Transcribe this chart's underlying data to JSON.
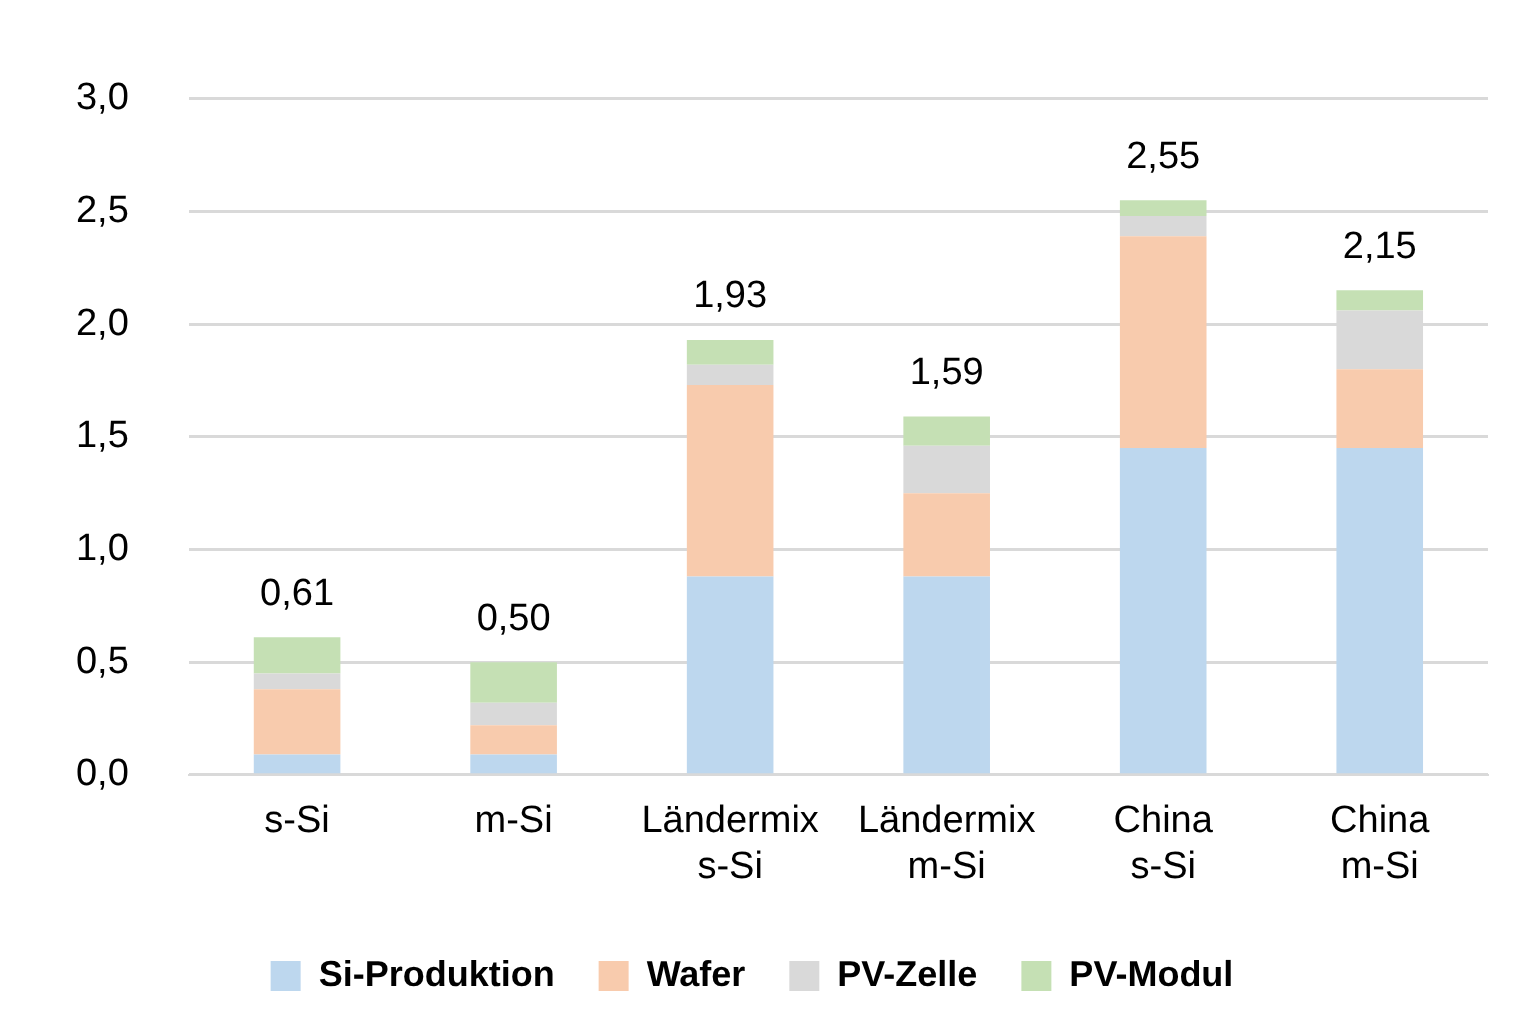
{
  "chart_data": {
    "type": "bar",
    "stacked": true,
    "categories": [
      "s-Si",
      "m-Si",
      "Ländermix s-Si",
      "Ländermix m-Si",
      "China s-Si",
      "China m-Si"
    ],
    "series": [
      {
        "name": "Si-Produktion",
        "color": "#bdd7ee",
        "values": [
          0.09,
          0.09,
          0.88,
          0.88,
          1.45,
          1.45
        ]
      },
      {
        "name": "Wafer",
        "color": "#f8cbad",
        "values": [
          0.29,
          0.13,
          0.85,
          0.37,
          0.94,
          0.35
        ]
      },
      {
        "name": "PV-Zelle",
        "color": "#d9d9d9",
        "values": [
          0.07,
          0.1,
          0.09,
          0.21,
          0.09,
          0.26
        ]
      },
      {
        "name": "PV-Modul",
        "color": "#c5e0b4",
        "values": [
          0.16,
          0.18,
          0.11,
          0.13,
          0.07,
          0.09
        ]
      }
    ],
    "totals": [
      "0,61",
      "0,50",
      "1,93",
      "1,59",
      "2,55",
      "2,15"
    ],
    "ylim": [
      0,
      3
    ],
    "yticks": [
      {
        "value": 0,
        "label": "0,0"
      },
      {
        "value": 0.5,
        "label": "0,5"
      },
      {
        "value": 1,
        "label": "1,0"
      },
      {
        "value": 1.5,
        "label": "1,5"
      },
      {
        "value": 2,
        "label": "2,0"
      },
      {
        "value": 2.5,
        "label": "2,5"
      },
      {
        "value": 3,
        "label": "3,0"
      }
    ],
    "grid": "y",
    "legend": "bottom"
  }
}
